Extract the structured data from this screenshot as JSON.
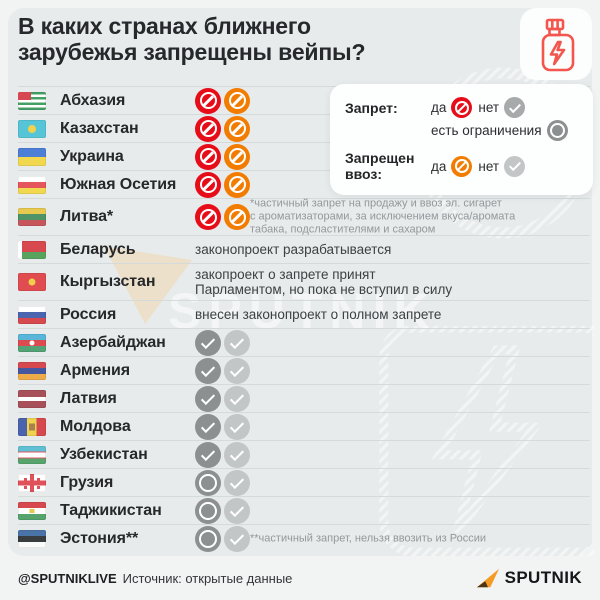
{
  "header": {
    "title": "В каких странах ближнего\nзарубежья запрещены вейпы?"
  },
  "legend": {
    "ban_label": "Запрет:",
    "yes": "да",
    "no": "нет",
    "restrictions": "есть ограничения",
    "import_label": "Запрещен ввоз:"
  },
  "colors": {
    "ban_red": "#e60d18",
    "ban_orange": "#f27c00",
    "check_dark": "#8c9091",
    "check_light": "#c3c6c6",
    "ring": "#8c9091",
    "vape_accent": "#f4564e",
    "sputnik_orange": "#f59a23"
  },
  "watermark": "SPUTNIK",
  "countries": [
    {
      "name": "Абхазия",
      "flag": "abkhazia",
      "icons": [
        "ban-red",
        "ban-orange"
      ]
    },
    {
      "name": "Казахстан",
      "flag": "kazakhstan",
      "icons": [
        "ban-red",
        "ban-orange"
      ]
    },
    {
      "name": "Украина",
      "flag": "ukraine",
      "icons": [
        "ban-red",
        "ban-orange"
      ]
    },
    {
      "name": "Южная Осетия",
      "flag": "south-ossetia",
      "icons": [
        "ban-red",
        "ban-orange"
      ]
    },
    {
      "name": "Литва*",
      "flag": "lithuania",
      "icons": [
        "ban-red",
        "ban-orange"
      ],
      "tall": true,
      "note": "*частичный запрет на продажу и ввоз эл. сигарет\nс ароматизаторами, за исключением вкуса/аромата\nтабака, подсластителями и сахаром"
    },
    {
      "name": "Беларусь",
      "flag": "belarus",
      "status": "законопроект разрабатывается"
    },
    {
      "name": "Кыргызстан",
      "flag": "kyrgyzstan",
      "tall": true,
      "status": "закопроект о запрете принят\nПарламентом, но пока не вступил в силу"
    },
    {
      "name": "Россия",
      "flag": "russia",
      "status": "внесен законопроект о полном запрете"
    },
    {
      "name": "Азербайджан",
      "flag": "azerbaijan",
      "icons": [
        "check-dark",
        "check-light"
      ]
    },
    {
      "name": "Армения",
      "flag": "armenia",
      "icons": [
        "check-dark",
        "check-light"
      ]
    },
    {
      "name": "Латвия",
      "flag": "latvia",
      "icons": [
        "check-dark",
        "check-light"
      ]
    },
    {
      "name": "Молдова",
      "flag": "moldova",
      "icons": [
        "check-dark",
        "check-light"
      ]
    },
    {
      "name": "Узбекистан",
      "flag": "uzbekistan",
      "icons": [
        "check-dark",
        "check-light"
      ]
    },
    {
      "name": "Грузия",
      "flag": "georgia",
      "icons": [
        "ring",
        "check-light"
      ]
    },
    {
      "name": "Таджикистан",
      "flag": "tajikistan",
      "icons": [
        "ring",
        "check-light"
      ]
    },
    {
      "name": "Эстония**",
      "flag": "estonia",
      "icons": [
        "ring",
        "check-light"
      ],
      "note": "**частичный запрет, нельзя ввозить из России"
    }
  ],
  "footer": {
    "handle": "@SPUTNIKLIVE",
    "source": "Источник: открытые данные",
    "brand": "SPUTNIK"
  }
}
